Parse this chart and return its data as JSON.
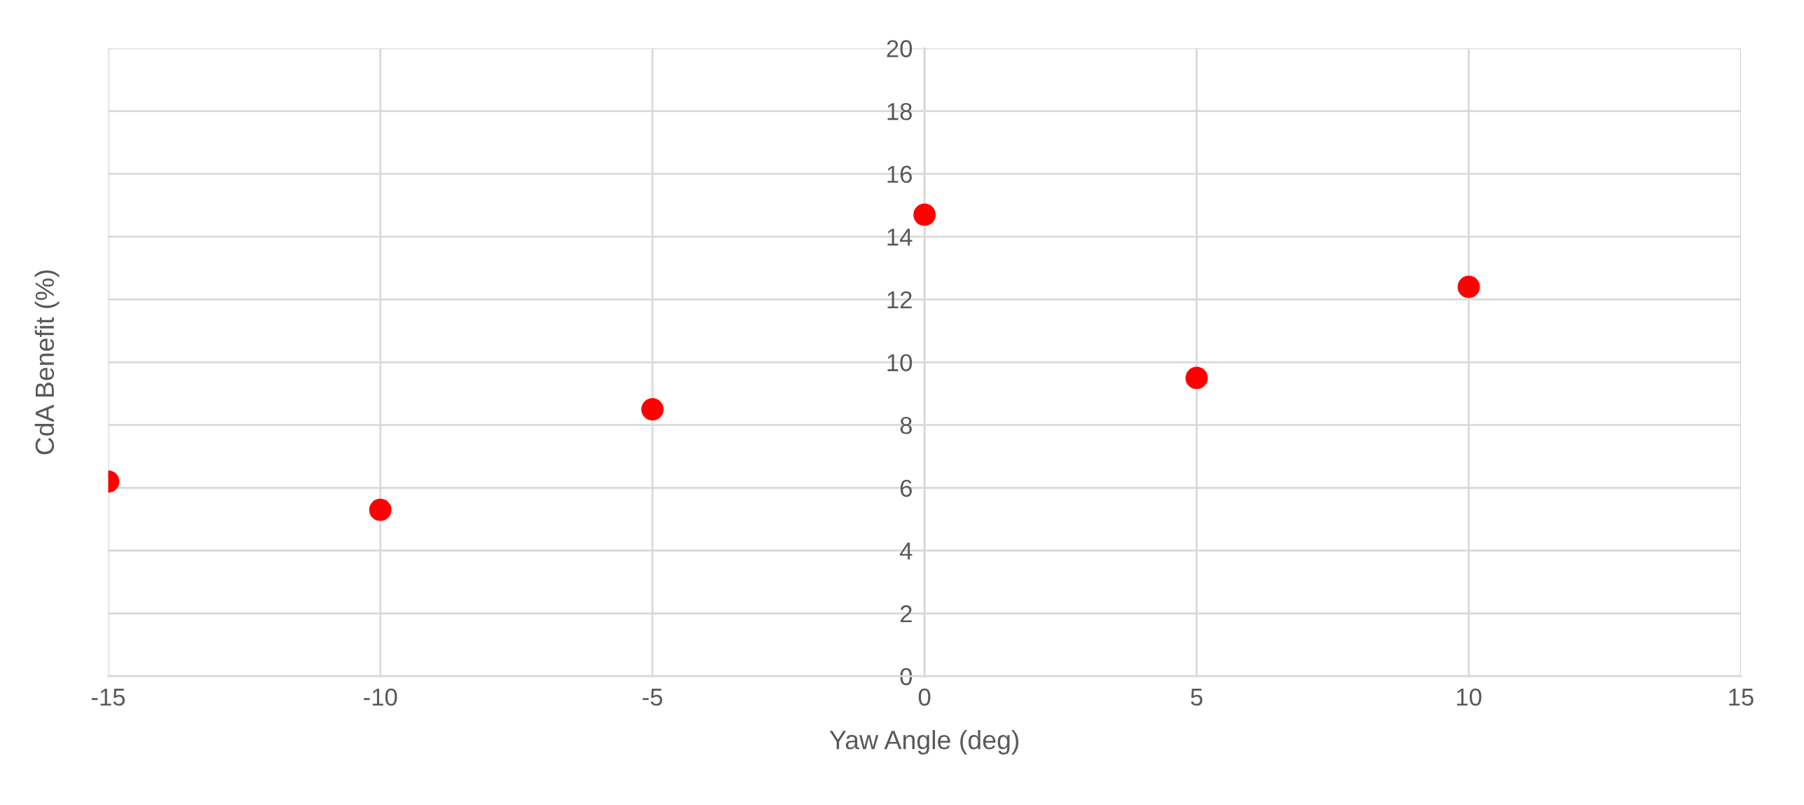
{
  "chart_data": {
    "type": "scatter",
    "xlabel": "Yaw Angle (deg)",
    "ylabel": "CdA Benefit (%)",
    "x": [
      -15,
      -10,
      -5,
      0,
      5,
      10
    ],
    "series": [
      {
        "color": "#ff0000",
        "values": [
          6.2,
          5.3,
          8.5,
          14.7,
          9.5,
          12.4
        ]
      }
    ],
    "xlim": [
      -15,
      15
    ],
    "xticks": [
      -15,
      -10,
      -5,
      0,
      5,
      10,
      15
    ],
    "ylim": [
      0,
      20
    ],
    "yticks": [
      0,
      2,
      4,
      6,
      8,
      10,
      12,
      14,
      16,
      18,
      20
    ],
    "grid": true,
    "marker": "circle"
  }
}
